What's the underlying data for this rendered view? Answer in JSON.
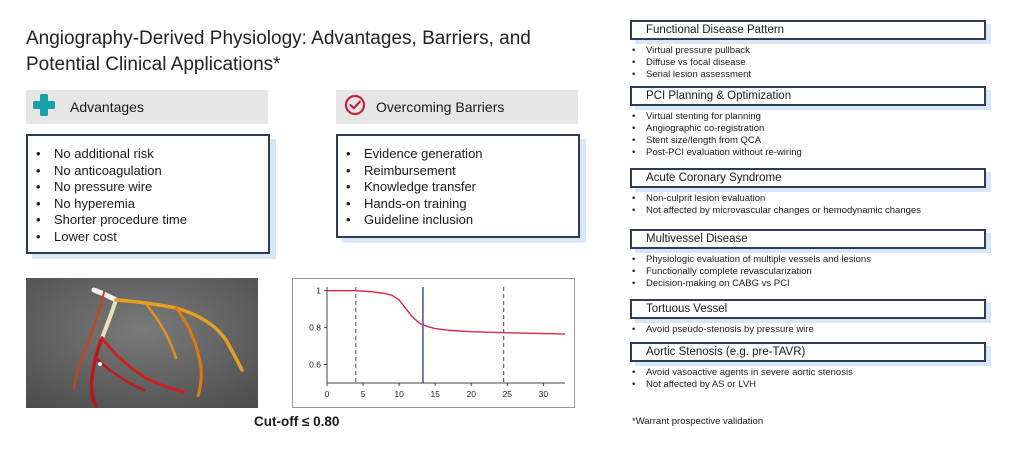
{
  "title": "Angiography-Derived Physiology: Advantages, Barriers, and Potential Clinical Applications*",
  "advantages": {
    "header": "Advantages",
    "icon": "plus-cross-icon",
    "color": "#16a0a8",
    "items": [
      "No additional risk",
      "No anticoagulation",
      "No pressure wire",
      "No hyperemia",
      "Shorter procedure time",
      "Lower cost"
    ]
  },
  "barriers": {
    "header": "Overcoming Barriers",
    "icon": "check-circle-icon",
    "color": "#c0273a",
    "items": [
      "Evidence generation",
      "Reimbursement",
      "Knowledge transfer",
      "Hands-on training",
      "Guideline inclusion"
    ]
  },
  "applications": [
    {
      "title": "Functional Disease Pattern",
      "items": [
        "Virtual pressure pullback",
        "Diffuse vs focal disease",
        "Serial lesion assessment"
      ]
    },
    {
      "title": "PCI Planning & Optimization",
      "items": [
        "Virtual stenting for planning",
        "Angiographic co-registration",
        "Stent size/length from QCA",
        "Post-PCI evaluation without re-wiring"
      ]
    },
    {
      "title": "Acute Coronary Syndrome",
      "items": [
        "Non-culprit lesion evaluation",
        "Not affected by microvascular changes or hemodynamic changes"
      ]
    },
    {
      "title": "Multivessel Disease",
      "items": [
        "Physiologic evaluation of multiple vessels and lesions",
        "Functionally complete revascularization",
        "Decision-making on CABG vs PCI"
      ]
    },
    {
      "title": "Tortuous Vessel",
      "items": [
        "Avoid pseudo-stenosis by pressure wire"
      ]
    },
    {
      "title": "Aortic Stenosis (e.g. pre-TAVR)",
      "items": [
        "Avoid vasoactive agents in severe aortic stenosis",
        "Not affected by AS or LVH"
      ]
    }
  ],
  "cutoff": "Cut-off ≤ 0.80",
  "footnote": "*Warrant prospective validation",
  "chart_data": {
    "type": "line",
    "xlim": [
      0,
      33
    ],
    "ylim": [
      0.5,
      1.02
    ],
    "xticks": [
      0,
      5,
      10,
      15,
      20,
      25,
      30
    ],
    "yticks": [
      0.6,
      0.8,
      1
    ],
    "ytick_labels": [
      "0.6",
      "0.8",
      "1"
    ],
    "series": [
      {
        "color": "#d6284a",
        "x": [
          0,
          2,
          4,
          6,
          8,
          9,
          10,
          11,
          11.8,
          12.5,
          13,
          14,
          15,
          17,
          20,
          25,
          30,
          33
        ],
        "y": [
          1.0,
          1.0,
          1.0,
          0.995,
          0.985,
          0.975,
          0.95,
          0.9,
          0.86,
          0.835,
          0.82,
          0.805,
          0.795,
          0.785,
          0.778,
          0.772,
          0.768,
          0.765
        ]
      }
    ],
    "vlines": [
      {
        "x": 4,
        "style": "dashed",
        "color": "#3b3f8f"
      },
      {
        "x": 13.3,
        "style": "solid",
        "color": "#3b3f8f"
      },
      {
        "x": 24.5,
        "style": "dashed",
        "color": "#3b3f8f"
      }
    ],
    "grid": false
  }
}
